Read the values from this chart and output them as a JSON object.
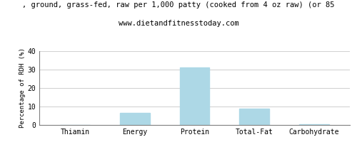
{
  "title_line1": ", ground, grass-fed, raw per 1,000 patty (cooked from 4 oz raw) (or 85",
  "title_line2": "www.dietandfitnesstoday.com",
  "categories": [
    "Thiamin",
    "Energy",
    "Protein",
    "Total-Fat",
    "Carbohydrate"
  ],
  "values": [
    0.0,
    6.5,
    31.0,
    9.0,
    0.3
  ],
  "bar_color": "#add8e6",
  "ylabel": "Percentage of RDH (%)",
  "ylim": [
    0,
    40
  ],
  "yticks": [
    0,
    10,
    20,
    30,
    40
  ],
  "background_color": "#ffffff",
  "title_fontsize": 7.5,
  "subtitle_fontsize": 7.5,
  "axis_label_fontsize": 6.5,
  "tick_fontsize": 7
}
